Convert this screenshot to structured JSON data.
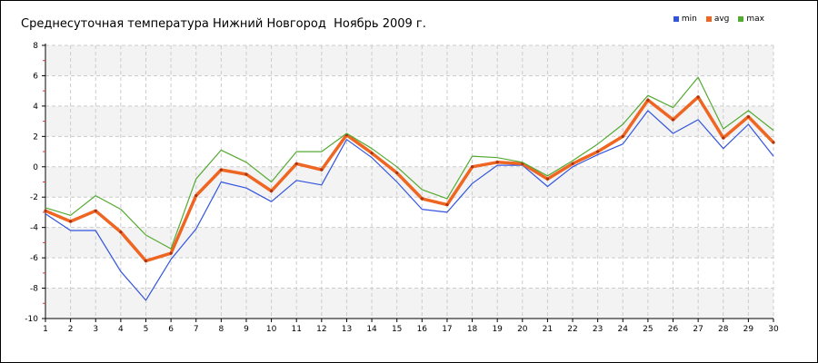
{
  "chart_data": {
    "type": "line",
    "title": "Среднесуточная температура Нижний Новгород  Ноябрь 2009 г.",
    "xlabel": "",
    "ylabel": "",
    "x": [
      1,
      2,
      3,
      4,
      5,
      6,
      7,
      8,
      9,
      10,
      11,
      12,
      13,
      14,
      15,
      16,
      17,
      18,
      19,
      20,
      21,
      22,
      23,
      24,
      25,
      26,
      27,
      28,
      29,
      30
    ],
    "xlim": [
      1,
      30
    ],
    "ylim": [
      -10,
      8
    ],
    "yticks": [
      -10,
      -8,
      -6,
      -4,
      -2,
      0,
      2,
      4,
      6,
      8
    ],
    "grid": true,
    "legend_position": "top-right",
    "series": [
      {
        "name": "min",
        "color": "#3355dd",
        "values": [
          -3.1,
          -4.2,
          -4.2,
          -6.9,
          -8.8,
          -6.1,
          -4.1,
          -1.0,
          -1.4,
          -2.3,
          -0.9,
          -1.2,
          1.8,
          0.6,
          -1.0,
          -2.8,
          -3.0,
          -1.1,
          0.1,
          0.1,
          -1.3,
          0.0,
          0.8,
          1.5,
          3.7,
          2.2,
          3.1,
          1.2,
          2.8,
          0.7
        ]
      },
      {
        "name": "avg",
        "color": "#ee6622",
        "values": [
          -2.9,
          -3.6,
          -2.9,
          -4.3,
          -6.2,
          -5.7,
          -1.9,
          -0.2,
          -0.5,
          -1.6,
          0.2,
          -0.2,
          2.1,
          0.9,
          -0.4,
          -2.1,
          -2.5,
          0.0,
          0.3,
          0.2,
          -0.8,
          0.2,
          1.0,
          2.0,
          4.4,
          3.1,
          4.6,
          1.9,
          3.3,
          1.6
        ]
      },
      {
        "name": "max",
        "color": "#55aa33",
        "values": [
          -2.7,
          -3.2,
          -1.9,
          -2.8,
          -4.5,
          -5.4,
          -0.8,
          1.1,
          0.3,
          -1.0,
          1.0,
          1.0,
          2.2,
          1.2,
          0.0,
          -1.5,
          -2.1,
          0.7,
          0.6,
          0.3,
          -0.6,
          0.4,
          1.5,
          2.8,
          4.7,
          3.9,
          5.9,
          2.5,
          3.7,
          2.4
        ]
      }
    ]
  }
}
